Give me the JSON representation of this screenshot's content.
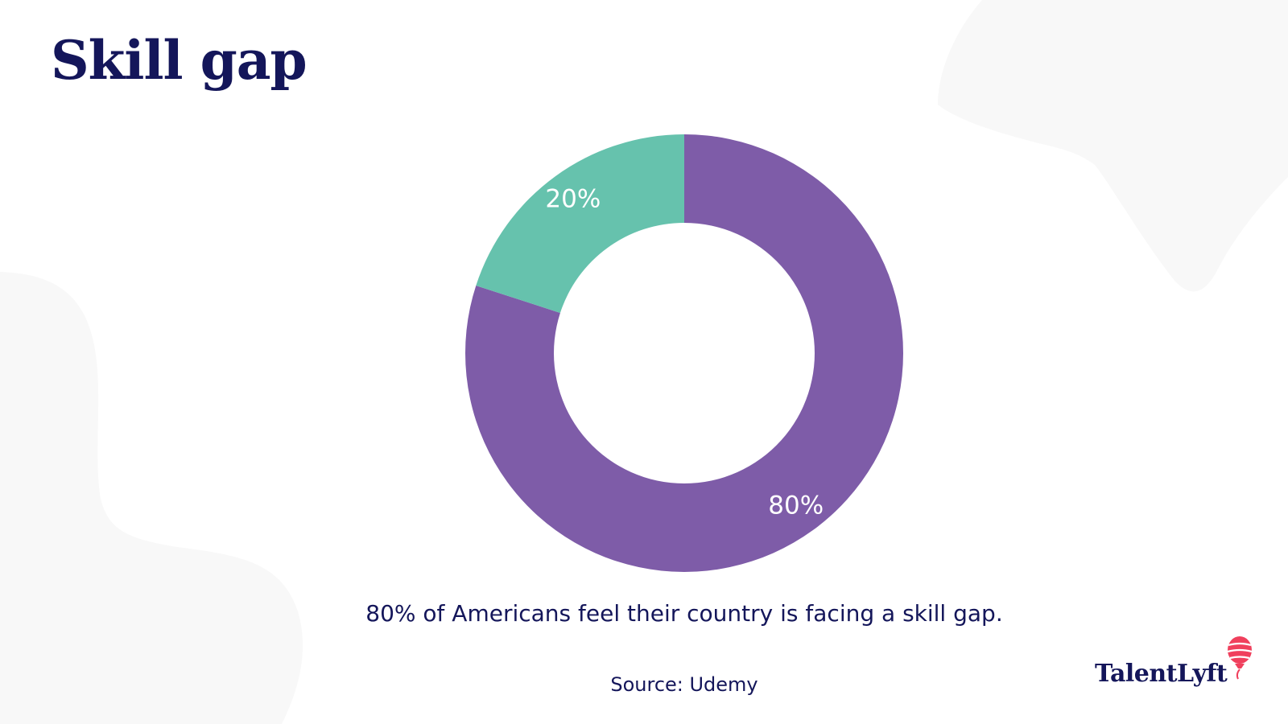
{
  "title": "Skill gap",
  "caption": "80% of Americans feel their country is facing a skill gap.",
  "source": "Source: Udemy",
  "logo": {
    "text": "TalentLyft",
    "icon": "balloon-icon"
  },
  "colors": {
    "background": "#ffffff",
    "title_text": "#14165a",
    "blob": "#f8f8f8",
    "slice_80": "#7e5ca8",
    "slice_20": "#66c2ad",
    "logo_accent": "#f0405d"
  },
  "chart_data": {
    "type": "pie",
    "donut": true,
    "slices": [
      {
        "value": 80,
        "label": "80%",
        "color": "#7e5ca8"
      },
      {
        "value": 20,
        "label": "20%",
        "color": "#66c2ad"
      }
    ],
    "start": "12 o'clock",
    "direction": "clockwise",
    "legend": "none"
  }
}
